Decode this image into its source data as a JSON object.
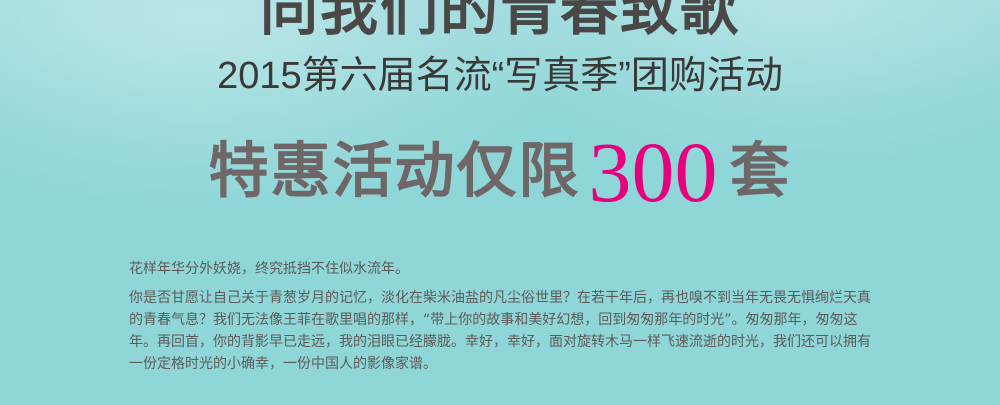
{
  "hero": {
    "title_partial": "同我们的青春致歌",
    "subtitle": "2015第六届名流“写真季”团购活动",
    "headline_prefix": "特惠活动仅限",
    "headline_number": "300",
    "headline_suffix": "套",
    "accent_color": "#e6007e"
  },
  "article": {
    "paragraph_1": "花样年华分外妖娆，终究抵挡不住似水流年。",
    "paragraph_2": "你是否甘愿让自己关于青葱岁月的记忆，淡化在柴米油盐的凡尘俗世里？在若干年后，再也嗅不到当年无畏无惧绚烂天真的青春气息？我们无法像王菲在歌里唱的那样，“带上你的故事和美好幻想，回到匆匆那年的时光”。匆匆那年，匆匆这年。再回首，你的背影早已走远，我的泪眼已经朦胧。幸好，幸好，面对旋转木马一样飞速流逝的时光，我们还可以拥有一份定格时光的小确幸，一份中国人的影像家谱。"
  }
}
